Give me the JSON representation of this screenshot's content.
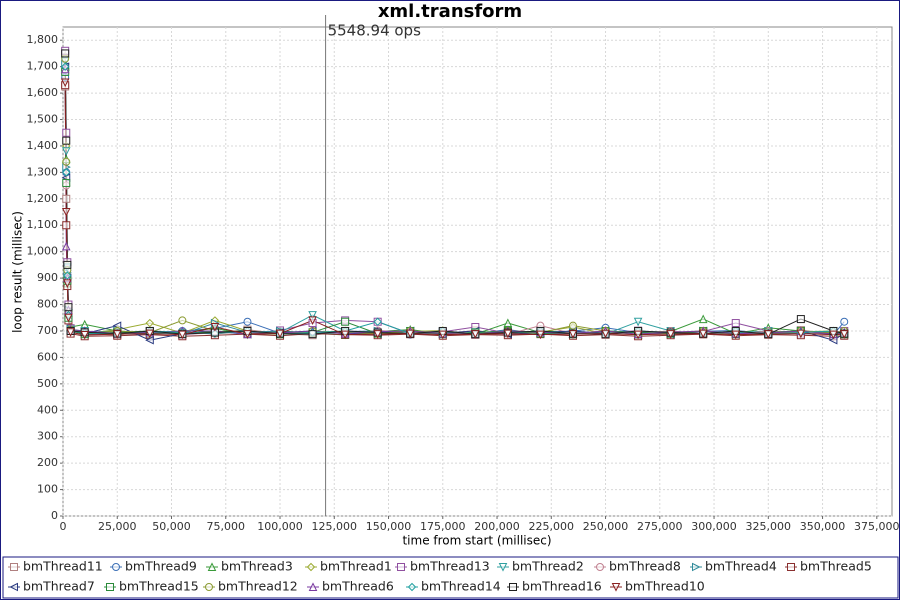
{
  "chart_data": {
    "type": "line",
    "title": "xml.transform",
    "x_label": "time from start (millisec)",
    "y_label": "loop result (millisec)",
    "annotation": {
      "x": 121000,
      "text": "5548.94 ops"
    },
    "xlim": [
      0,
      382000
    ],
    "ylim": [
      0,
      1850
    ],
    "grid": true,
    "xticks": [
      0,
      {
        "value": 25000,
        "label": "25,000"
      },
      {
        "value": 50000,
        "label": "50,000"
      },
      {
        "value": 75000,
        "label": "75,000"
      },
      {
        "value": 100000,
        "label": "100,000"
      },
      {
        "value": 125000,
        "label": "125,000"
      },
      {
        "value": 150000,
        "label": "150,000"
      },
      {
        "value": 175000,
        "label": "175,000"
      },
      {
        "value": 200000,
        "label": "200,000"
      },
      {
        "value": 225000,
        "label": "225,000"
      },
      {
        "value": 250000,
        "label": "250,000"
      },
      {
        "value": 275000,
        "label": "275,000"
      },
      {
        "value": 300000,
        "label": "300,000"
      },
      {
        "value": 325000,
        "label": "325,000"
      },
      {
        "value": 350000,
        "label": "350,000"
      },
      {
        "value": 375000,
        "label": "375,000"
      }
    ],
    "yticks": [
      0,
      100,
      200,
      300,
      400,
      500,
      600,
      700,
      800,
      900,
      {
        "value": 1000,
        "label": "1,000"
      },
      {
        "value": 1100,
        "label": "1,100"
      },
      {
        "value": 1200,
        "label": "1,200"
      },
      {
        "value": 1300,
        "label": "1,300"
      },
      {
        "value": 1400,
        "label": "1,400"
      },
      {
        "value": 1500,
        "label": "1,500"
      },
      {
        "value": 1600,
        "label": "1,600"
      },
      {
        "value": 1700,
        "label": "1,700"
      },
      {
        "value": 1800,
        "label": "1,800"
      }
    ],
    "x": [
      1000,
      1500,
      2000,
      2500,
      3500,
      10000,
      25000,
      40000,
      55000,
      70000,
      85000,
      100000,
      115000,
      130000,
      145000,
      160000,
      175000,
      190000,
      205000,
      220000,
      235000,
      250000,
      265000,
      280000,
      295000,
      310000,
      325000,
      340000,
      355000,
      360000
    ],
    "series": [
      {
        "name": "bmThread11",
        "color": "#b08080",
        "marker": "square",
        "values": [
          1625,
          1200,
          900,
          760,
          710,
          690,
          685,
          700,
          688,
          692,
          705,
          690,
          684,
          700,
          695,
          688,
          690,
          702,
          686,
          693,
          698,
          689,
          700,
          691,
          687,
          695,
          690,
          703,
          688,
          685
        ]
      },
      {
        "name": "bmThread9",
        "color": "#3b6fb6",
        "marker": "circle",
        "values": [
          1660,
          1300,
          930,
          780,
          705,
          695,
          690,
          688,
          700,
          710,
          735,
          692,
          690,
          698,
          700,
          686,
          695,
          690,
          705,
          689,
          700,
          712,
          694,
          688,
          699,
          702,
          690,
          694,
          686,
          735
        ]
      },
      {
        "name": "bmThread3",
        "color": "#3a9a3a",
        "marker": "triangle",
        "values": [
          1700,
          1350,
          880,
          770,
          715,
          725,
          700,
          690,
          695,
          710,
          688,
          700,
          692,
          685,
          698,
          705,
          690,
          688,
          730,
          694,
          690,
          700,
          685,
          698,
          745,
          690,
          712,
          700,
          689,
          692
        ]
      },
      {
        "name": "bmThread1",
        "color": "#9aaa30",
        "marker": "diamond",
        "values": [
          1740,
          1400,
          950,
          790,
          700,
          690,
          705,
          730,
          692,
          740,
          700,
          688,
          694,
          700,
          690,
          698,
          702,
          687,
          700,
          696,
          715,
          690,
          700,
          693,
          688,
          700,
          690,
          697,
          700,
          690
        ]
      },
      {
        "name": "bmThread13",
        "color": "#9050a0",
        "marker": "square",
        "values": [
          1760,
          1450,
          960,
          800,
          710,
          688,
          692,
          700,
          686,
          695,
          690,
          702,
          730,
          740,
          735,
          690,
          697,
          715,
          692,
          700,
          688,
          694,
          701,
          690,
          698,
          730,
          700,
          690,
          695,
          700
        ]
      },
      {
        "name": "bmThread2",
        "color": "#30a0a0",
        "marker": "triangle-down",
        "values": [
          1720,
          1380,
          940,
          760,
          705,
          700,
          690,
          695,
          690,
          700,
          686,
          694,
          760,
          700,
          690,
          700,
          688,
          695,
          690,
          700,
          695,
          688,
          735,
          700,
          690,
          694,
          700,
          688,
          700,
          690
        ]
      },
      {
        "name": "bmThread8",
        "color": "#c08090",
        "marker": "circle",
        "values": [
          1690,
          1250,
          910,
          770,
          700,
          692,
          688,
          700,
          695,
          688,
          700,
          691,
          700,
          689,
          702,
          694,
          700,
          690,
          688,
          720,
          690,
          701,
          693,
          700,
          690,
          688,
          700,
          695,
          690,
          700
        ]
      },
      {
        "name": "bmThread4",
        "color": "#308a9a",
        "marker": "triangle-right",
        "values": [
          1710,
          1320,
          920,
          780,
          708,
          695,
          700,
          690,
          688,
          730,
          695,
          700,
          688,
          695,
          700,
          690,
          698,
          688,
          700,
          692,
          688,
          700,
          695,
          688,
          700,
          692,
          688,
          700,
          690,
          694
        ]
      },
      {
        "name": "bmThread5",
        "color": "#8a3030",
        "marker": "square",
        "values": [
          1630,
          1100,
          870,
          740,
          690,
          680,
          682,
          686,
          680,
          684,
          688,
          682,
          690,
          686,
          684,
          688,
          682,
          686,
          684,
          688,
          682,
          686,
          680,
          684,
          688,
          682,
          686,
          684,
          680,
          682
        ]
      },
      {
        "name": "bmThread7",
        "color": "#2a3a80",
        "marker": "triangle-left",
        "values": [
          1700,
          1280,
          900,
          760,
          700,
          690,
          720,
          665,
          690,
          700,
          688,
          694,
          700,
          690,
          688,
          700,
          692,
          700,
          688,
          694,
          700,
          690,
          695,
          688,
          700,
          690,
          694,
          700,
          665,
          690
        ]
      },
      {
        "name": "bmThread15",
        "color": "#2a8a3a",
        "marker": "square",
        "values": [
          1680,
          1260,
          890,
          750,
          700,
          688,
          695,
          700,
          690,
          698,
          700,
          688,
          695,
          735,
          690,
          700,
          688,
          694,
          700,
          690,
          688,
          700,
          694,
          690,
          700,
          688,
          694,
          700,
          690,
          688
        ]
      },
      {
        "name": "bmThread12",
        "color": "#8a9a30",
        "marker": "circle",
        "values": [
          1730,
          1340,
          930,
          770,
          705,
          692,
          700,
          694,
          740,
          700,
          690,
          688,
          700,
          694,
          690,
          700,
          692,
          688,
          700,
          694,
          720,
          700,
          688,
          694,
          700,
          690,
          688,
          700,
          694,
          700
        ]
      },
      {
        "name": "bmThread6",
        "color": "#7a3aa0",
        "marker": "triangle",
        "values": [
          1690,
          1020,
          900,
          780,
          705,
          700,
          690,
          695,
          700,
          700,
          688,
          692,
          700,
          690,
          698,
          700,
          690,
          688,
          700,
          695,
          690,
          700,
          688,
          695,
          700,
          690,
          692,
          700,
          688,
          695
        ]
      },
      {
        "name": "bmThread14",
        "color": "#20a0a0",
        "marker": "diamond",
        "values": [
          1700,
          1300,
          910,
          760,
          700,
          692,
          688,
          700,
          694,
          690,
          700,
          688,
          694,
          700,
          735,
          690,
          700,
          688,
          694,
          700,
          690,
          688,
          700,
          694,
          690,
          700,
          688,
          694,
          700,
          690
        ]
      },
      {
        "name": "bmThread16",
        "color": "#202020",
        "marker": "square",
        "values": [
          1750,
          1420,
          950,
          790,
          700,
          695,
          690,
          700,
          688,
          694,
          700,
          690,
          688,
          700,
          694,
          690,
          700,
          688,
          694,
          700,
          690,
          688,
          700,
          694,
          690,
          700,
          688,
          745,
          700,
          690
        ]
      },
      {
        "name": "bmThread10",
        "color": "#8a2020",
        "marker": "triangle-down",
        "values": [
          1640,
          1150,
          880,
          750,
          695,
          685,
          688,
          690,
          686,
          715,
          688,
          690,
          740,
          686,
          688,
          690,
          686,
          688,
          690,
          686,
          688,
          690,
          686,
          688,
          690,
          686,
          688,
          690,
          686,
          688
        ]
      }
    ]
  }
}
